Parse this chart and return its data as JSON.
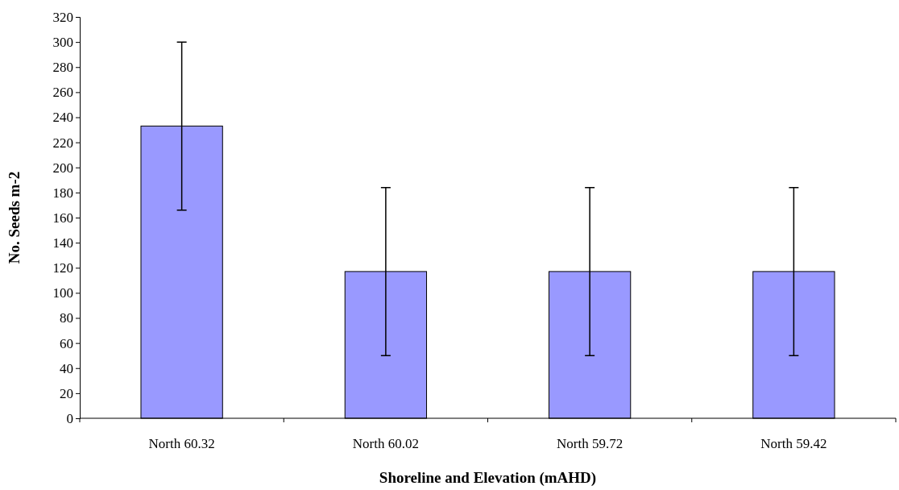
{
  "chart_data": {
    "type": "bar",
    "xlabel": "Shoreline and Elevation (mAHD)",
    "ylabel": "No. Seeds m-2",
    "categories": [
      "North 60.32",
      "North 60.02",
      "North 59.72",
      "North 59.42"
    ],
    "values": [
      233,
      117,
      117,
      117
    ],
    "errors": [
      67,
      67,
      67,
      67
    ],
    "color": "#9999ff",
    "ylim": [
      0,
      320
    ],
    "yticks": [
      0,
      20,
      40,
      60,
      80,
      100,
      120,
      140,
      160,
      180,
      200,
      220,
      240,
      260,
      280,
      300,
      320
    ],
    "grid": false
  }
}
